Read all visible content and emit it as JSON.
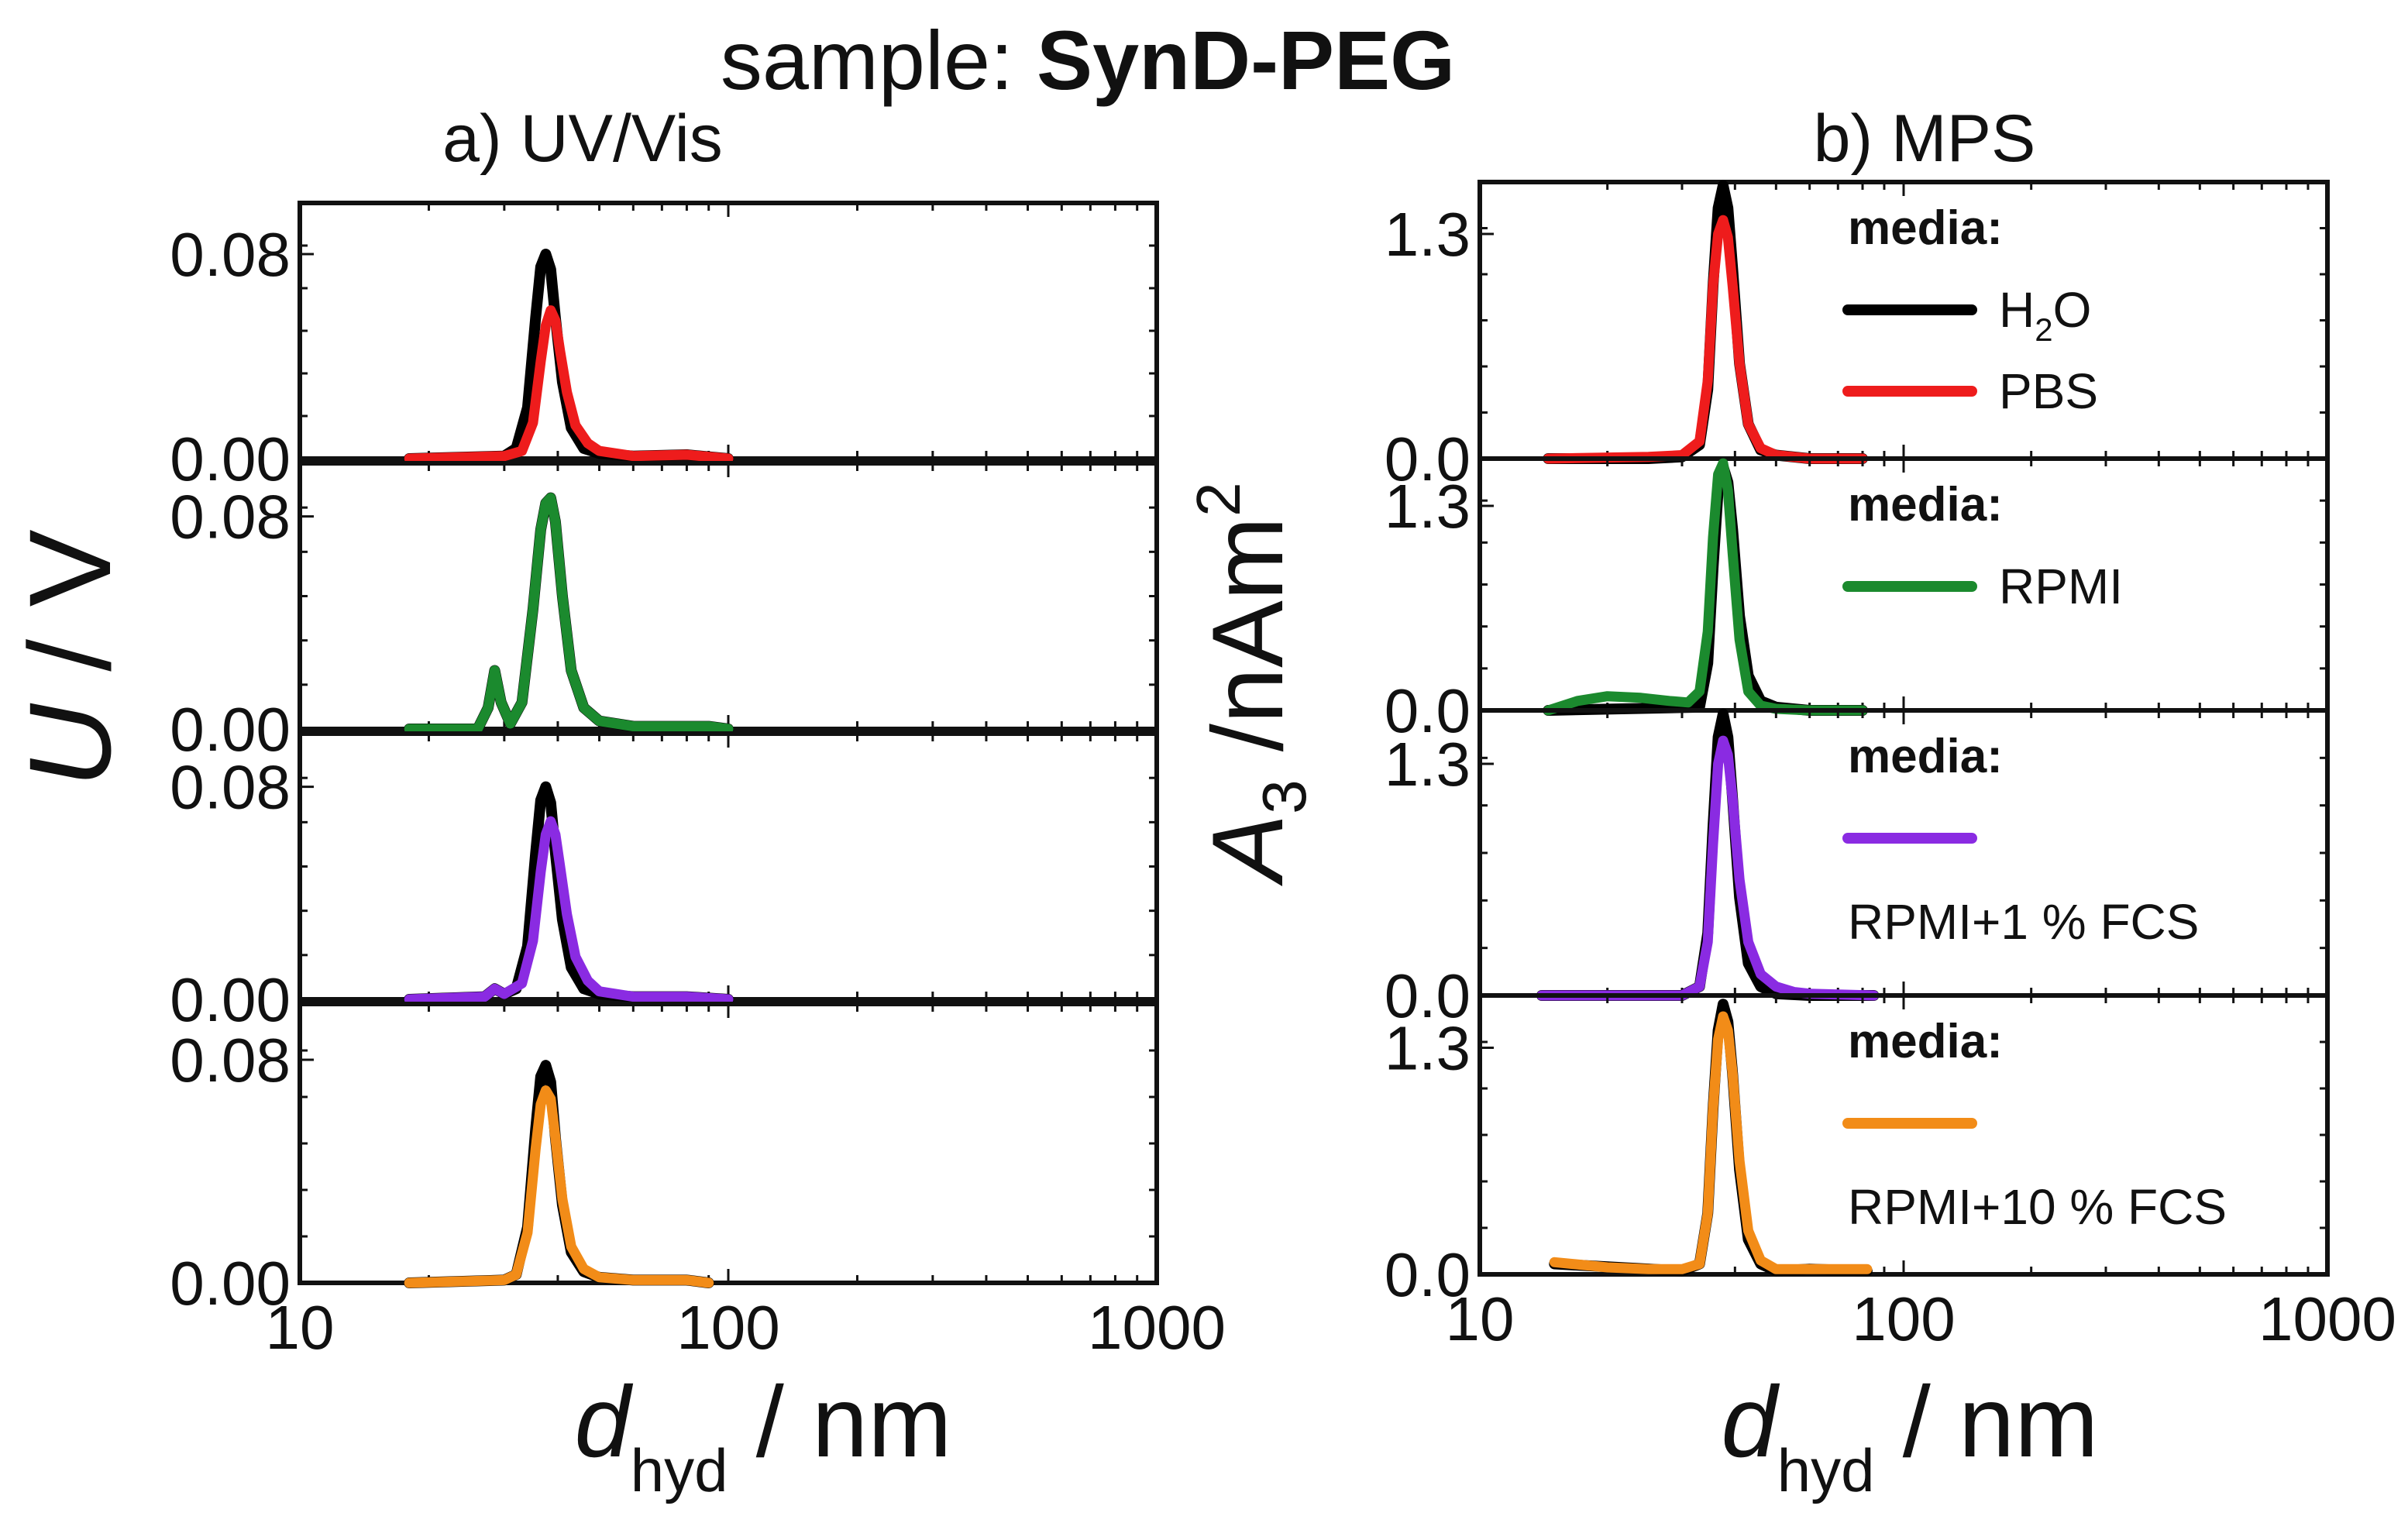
{
  "title": {
    "prefix": "sample: ",
    "sample": "SynD-PEG"
  },
  "colors": {
    "H2O": "#000000",
    "PBS": "#ee1c1c",
    "RPMI": "#1b8a2e",
    "RPMI_1FCS": "#8a2be2",
    "RPMI_10FCS": "#f28c18",
    "axis": "#111111"
  },
  "x_axis": {
    "scale": "log",
    "range": [
      10,
      1000
    ],
    "ticks": [
      "10",
      "100",
      "1000"
    ],
    "label_main": "d",
    "label_sub": "hyd",
    "label_unit": " / nm"
  },
  "chart_data": [
    {
      "type": "line",
      "panel": "a",
      "title": "a) UV/Vis",
      "ylabel": "U / V",
      "ylabel_italic": "U",
      "ylabel_rest": " / V",
      "xlabel": "d_hyd / nm",
      "xscale": "log",
      "xlim": [
        10,
        1000
      ],
      "ylim": [
        0,
        0.1
      ],
      "yticks": [
        "0.00",
        "0.08"
      ],
      "subplots": [
        {
          "series": [
            {
              "name": "H2O",
              "color": "#000000",
              "x": [
                18,
                30,
                32,
                34,
                35.5,
                36.5,
                37.5,
                38.5,
                39.5,
                41,
                43,
                46,
                50,
                60,
                80,
                100
              ],
              "y": [
                0,
                0.001,
                0.004,
                0.02,
                0.055,
                0.075,
                0.08,
                0.074,
                0.055,
                0.03,
                0.012,
                0.004,
                0.002,
                0.001,
                0.0015,
                0
              ]
            },
            {
              "name": "PBS",
              "color": "#ee1c1c",
              "x": [
                18,
                30,
                33,
                35,
                36.5,
                37.5,
                38.5,
                39.5,
                40.5,
                42,
                44,
                47,
                50,
                60,
                80,
                100
              ],
              "y": [
                0,
                0.001,
                0.003,
                0.014,
                0.038,
                0.052,
                0.058,
                0.054,
                0.042,
                0.026,
                0.013,
                0.006,
                0.003,
                0.001,
                0.0015,
                0
              ]
            }
          ]
        },
        {
          "series": [
            {
              "name": "H2O",
              "color": "#000000",
              "x": [
                18,
                26,
                27.5,
                28.5,
                29.5,
                31,
                33,
                35,
                36.5,
                37.5,
                38.5,
                39.5,
                41,
                43,
                46,
                50,
                60,
                90,
                100
              ],
              "y": [
                0,
                0,
                0.008,
                0.022,
                0.01,
                0.002,
                0.01,
                0.045,
                0.075,
                0.085,
                0.087,
                0.078,
                0.05,
                0.022,
                0.008,
                0.003,
                0.001,
                0.001,
                0
              ]
            },
            {
              "name": "RPMI",
              "color": "#1b8a2e",
              "x": [
                18,
                26,
                27.5,
                28.5,
                29.5,
                31,
                33,
                35,
                36.5,
                37.5,
                38.5,
                39.5,
                41,
                43,
                46,
                50,
                60,
                90,
                100
              ],
              "y": [
                0,
                0,
                0.008,
                0.022,
                0.01,
                0.002,
                0.01,
                0.045,
                0.075,
                0.085,
                0.087,
                0.078,
                0.05,
                0.022,
                0.008,
                0.003,
                0.001,
                0.001,
                0
              ]
            }
          ]
        },
        {
          "series": [
            {
              "name": "H2O",
              "color": "#000000",
              "x": [
                18,
                27,
                28.5,
                30,
                32,
                34,
                35.5,
                36.5,
                37.5,
                38.5,
                39.5,
                41,
                43,
                46,
                50,
                60,
                80,
                100
              ],
              "y": [
                0,
                0.001,
                0.004,
                0.002,
                0.004,
                0.02,
                0.055,
                0.075,
                0.08,
                0.074,
                0.055,
                0.03,
                0.012,
                0.004,
                0.002,
                0.001,
                0.001,
                0
              ]
            },
            {
              "name": "RPMI+1 % FCS",
              "color": "#8a2be2",
              "x": [
                18,
                27,
                28.5,
                30,
                33,
                35,
                36.5,
                37.5,
                38.5,
                39.5,
                40.5,
                42,
                44,
                47,
                50,
                60,
                80,
                100
              ],
              "y": [
                0,
                0.001,
                0.004,
                0.002,
                0.006,
                0.022,
                0.048,
                0.062,
                0.067,
                0.062,
                0.05,
                0.032,
                0.016,
                0.007,
                0.003,
                0.001,
                0.001,
                0
              ]
            }
          ]
        },
        {
          "series": [
            {
              "name": "H2O",
              "color": "#000000",
              "x": [
                18,
                30,
                32,
                34,
                35.5,
                36.5,
                37.5,
                38.5,
                39.5,
                41,
                43,
                46,
                50,
                60,
                80,
                90
              ],
              "y": [
                0,
                0.001,
                0.003,
                0.02,
                0.055,
                0.074,
                0.078,
                0.072,
                0.052,
                0.028,
                0.011,
                0.004,
                0.002,
                0.001,
                0.001,
                0
              ]
            },
            {
              "name": "RPMI+10 % FCS",
              "color": "#f28c18",
              "x": [
                18,
                30,
                32,
                34,
                35.5,
                36.5,
                37.5,
                38.5,
                39.5,
                41,
                43,
                46,
                50,
                60,
                80,
                90
              ],
              "y": [
                0,
                0.001,
                0.003,
                0.018,
                0.048,
                0.064,
                0.069,
                0.066,
                0.052,
                0.03,
                0.013,
                0.005,
                0.002,
                0.001,
                0.001,
                0
              ]
            }
          ]
        }
      ]
    },
    {
      "type": "line",
      "panel": "b",
      "title": "b) MPS",
      "ylabel": "A3 /nAm2",
      "ylabel_italic": "A",
      "ylabel_sub": "3",
      "ylabel_rest": " /nAm",
      "ylabel_sup": "2",
      "xlabel": "d_hyd / nm",
      "xscale": "log",
      "xlim": [
        10,
        1000
      ],
      "ylim": [
        0,
        1.6
      ],
      "yticks": [
        "0.0",
        "1.3"
      ],
      "subplots": [
        {
          "legend_head": "media:",
          "legend": [
            {
              "label_main": "H",
              "label_sub": "2",
              "label_rest": "O",
              "color": "#000000"
            },
            {
              "label_main": "PBS",
              "label_sub": "",
              "label_rest": "",
              "color": "#ee1c1c"
            }
          ],
          "series": [
            {
              "name": "H2O",
              "color": "#000000",
              "x": [
                14.5,
                25,
                30,
                33,
                34.5,
                35.5,
                36.5,
                37.5,
                38.5,
                39.5,
                41,
                43,
                46,
                50,
                60,
                80
              ],
              "y": [
                0,
                0,
                0.01,
                0.08,
                0.4,
                1.0,
                1.45,
                1.58,
                1.45,
                1.1,
                0.55,
                0.2,
                0.05,
                0.02,
                0,
                0
              ]
            },
            {
              "name": "PBS",
              "color": "#ee1c1c",
              "x": [
                14.5,
                25,
                30,
                33,
                34.5,
                35.5,
                36.5,
                37.5,
                38.5,
                39.5,
                41,
                43,
                46,
                50,
                60,
                80
              ],
              "y": [
                0,
                0.01,
                0.02,
                0.1,
                0.45,
                1.0,
                1.3,
                1.38,
                1.28,
                1.0,
                0.55,
                0.2,
                0.06,
                0.02,
                0,
                0
              ]
            }
          ]
        },
        {
          "legend_head": "media:",
          "legend": [
            {
              "label_main": "RPMI",
              "label_sub": "",
              "label_rest": "",
              "color": "#1b8a2e"
            }
          ],
          "series": [
            {
              "name": "H2O",
              "color": "#000000",
              "x": [
                14.5,
                33,
                34.5,
                35.5,
                36.5,
                37.5,
                38.5,
                39.5,
                41,
                43,
                46,
                50,
                60,
                80
              ],
              "y": [
                0,
                0.02,
                0.3,
                0.9,
                1.4,
                1.55,
                1.45,
                1.15,
                0.6,
                0.22,
                0.06,
                0.02,
                0,
                0
              ]
            },
            {
              "name": "RPMI",
              "color": "#1b8a2e",
              "x": [
                14.5,
                17,
                20,
                24,
                28,
                31,
                33,
                34.5,
                35.5,
                36.5,
                37.5,
                38.5,
                39.5,
                41,
                43,
                46,
                50,
                60,
                80
              ],
              "y": [
                0,
                0.06,
                0.09,
                0.08,
                0.06,
                0.05,
                0.12,
                0.5,
                1.1,
                1.5,
                1.57,
                1.4,
                1.0,
                0.45,
                0.12,
                0.03,
                0.01,
                0,
                0
              ]
            }
          ]
        },
        {
          "legend_head": "media:",
          "legend": [
            {
              "label_main": "RPMI+1 % FCS",
              "label_sub": "",
              "label_rest": "",
              "color": "#8a2be2"
            }
          ],
          "series": [
            {
              "name": "H2O",
              "color": "#000000",
              "x": [
                14,
                30,
                33,
                34.5,
                35.5,
                36.5,
                37.5,
                38.5,
                39.5,
                41,
                43,
                46,
                50,
                60,
                85
              ],
              "y": [
                0,
                0,
                0.05,
                0.35,
                0.95,
                1.45,
                1.58,
                1.45,
                1.1,
                0.55,
                0.18,
                0.05,
                0.01,
                0,
                0
              ]
            },
            {
              "name": "RPMI+1 % FCS",
              "color": "#8a2be2",
              "x": [
                14,
                30,
                33,
                34.5,
                35.5,
                36.5,
                37.5,
                38.5,
                39.5,
                41,
                43,
                46,
                50,
                55,
                60,
                85
              ],
              "y": [
                0,
                0,
                0.05,
                0.3,
                0.85,
                1.3,
                1.43,
                1.35,
                1.1,
                0.65,
                0.3,
                0.12,
                0.05,
                0.02,
                0.01,
                0
              ]
            }
          ]
        },
        {
          "legend_head": "media:",
          "legend": [
            {
              "label_main": "RPMI+10 % FCS",
              "label_sub": "",
              "label_rest": "",
              "color": "#f28c18"
            }
          ],
          "series": [
            {
              "name": "H2O",
              "color": "#000000",
              "x": [
                15,
                30,
                33,
                34.5,
                35.5,
                36.5,
                37.5,
                38.5,
                39.5,
                41,
                43,
                46,
                50,
                60,
                82
              ],
              "y": [
                0.06,
                0.02,
                0.06,
                0.35,
                0.95,
                1.4,
                1.55,
                1.45,
                1.15,
                0.6,
                0.2,
                0.06,
                0.02,
                0.03,
                0.02
              ]
            },
            {
              "name": "RPMI+10 % FCS",
              "color": "#f28c18",
              "x": [
                15,
                20,
                25,
                30,
                33,
                34.5,
                35.5,
                36.5,
                37.5,
                38.5,
                39.5,
                41,
                43,
                46,
                50,
                60,
                82
              ],
              "y": [
                0.07,
                0.04,
                0.03,
                0.03,
                0.06,
                0.35,
                0.95,
                1.35,
                1.48,
                1.4,
                1.15,
                0.65,
                0.25,
                0.08,
                0.03,
                0.03,
                0.03
              ]
            }
          ]
        }
      ]
    }
  ]
}
